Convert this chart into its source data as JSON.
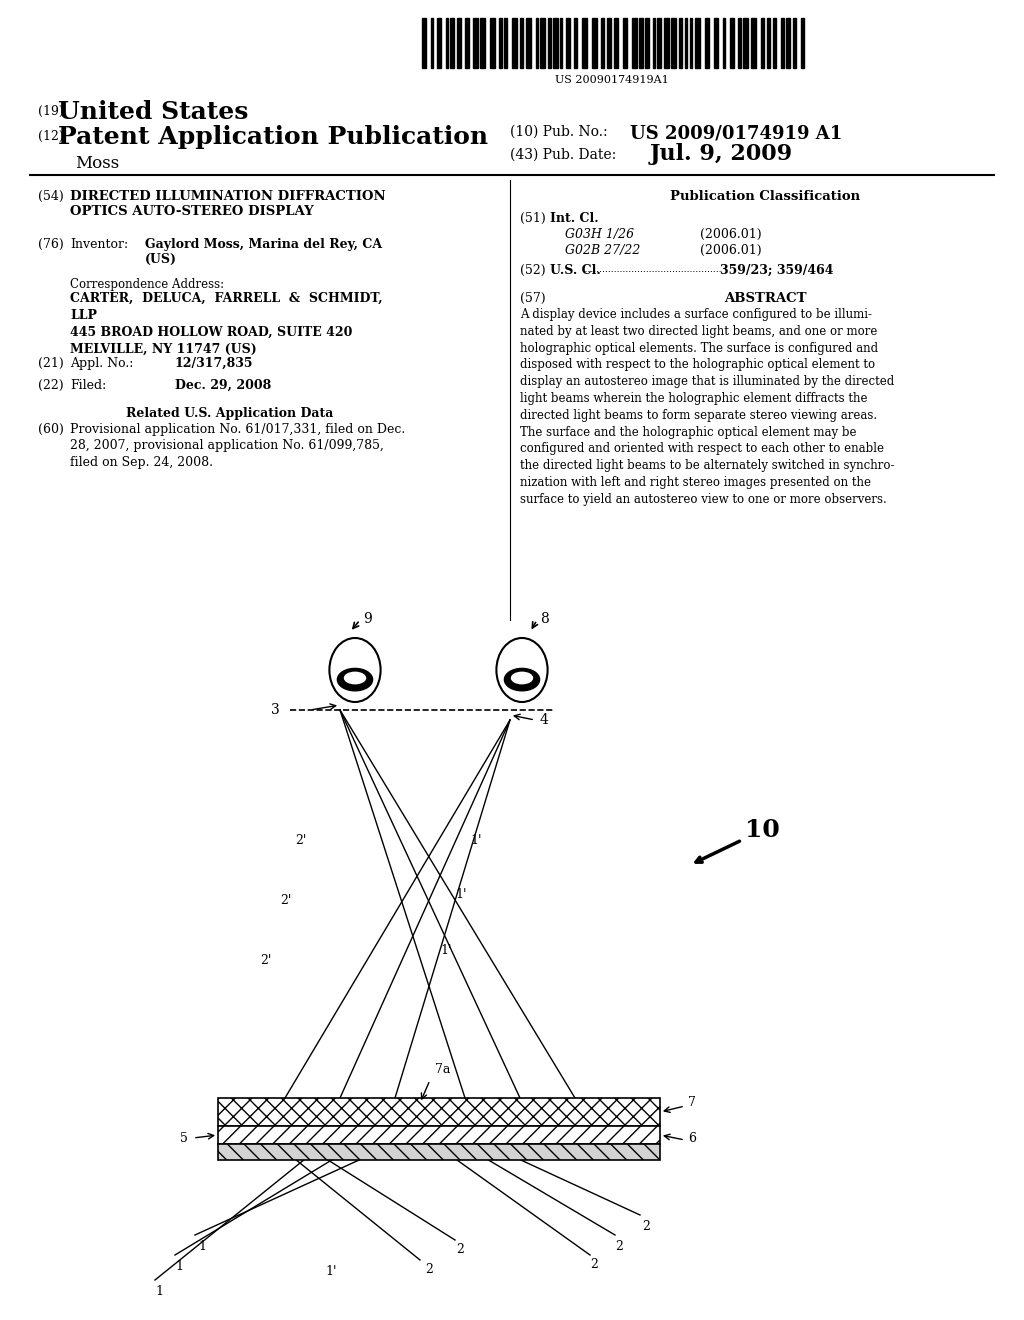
{
  "bg_color": "#ffffff",
  "barcode_text": "US 20090174919A1",
  "header": {
    "country_num": "(19)",
    "country": "United States",
    "type_num": "(12)",
    "type": "Patent Application Publication",
    "pub_num_label": "(10) Pub. No.:",
    "pub_num": "US 2009/0174919 A1",
    "date_num_label": "(43) Pub. Date:",
    "pub_date": "Jul. 9, 2009",
    "inventor_name": "Moss"
  },
  "left_col": {
    "title_num": "(54)",
    "title": "DIRECTED ILLUMINATION DIFFRACTION\nOPTICS AUTO-STEREO DISPLAY",
    "inventor_num": "(76)",
    "inventor_label": "Inventor:",
    "inventor_value": "Gaylord Moss, Marina del Rey, CA\n(US)",
    "corr_label": "Correspondence Address:",
    "corr_name": "CARTER,  DELUCA,  FARRELL  &  SCHMIDT,\nLLP\n445 BROAD HOLLOW ROAD, SUITE 420\nMELVILLE, NY 11747 (US)",
    "appl_num": "(21)",
    "appl_label": "Appl. No.:",
    "appl_value": "12/317,835",
    "filed_num": "(22)",
    "filed_label": "Filed:",
    "filed_value": "Dec. 29, 2008",
    "related_title": "Related U.S. Application Data",
    "related_text": "Provisional application No. 61/017,331, filed on Dec.\n28, 2007, provisional application No. 61/099,785,\nfiled on Sep. 24, 2008."
  },
  "right_col": {
    "pub_class_title": "Publication Classification",
    "int_cl_num": "(51)",
    "int_cl_label": "Int. Cl.",
    "int_cl_1": "G03H 1/26",
    "int_cl_1_date": "(2006.01)",
    "int_cl_2": "G02B 27/22",
    "int_cl_2_date": "(2006.01)",
    "us_cl_num": "(52)",
    "us_cl_label": "U.S. Cl.",
    "us_cl_value": "359/23; 359/464",
    "abstract_num": "(57)",
    "abstract_title": "ABSTRACT",
    "abstract_text": "A display device includes a surface configured to be illumi-\nnated by at least two directed light beams, and one or more\nholographic optical elements. The surface is configured and\ndisposed with respect to the holographic optical element to\ndisplay an autostereo image that is illuminated by the directed\nlight beams wherein the holographic element diffracts the\ndirected light beams to form separate stereo viewing areas.\nThe surface and the holographic optical element may be\nconfigured and oriented with respect to each other to enable\nthe directed light beams to be alternately switched in synchro-\nnization with left and right stereo images presented on the\nsurface to yield an autostereo view to one or more observers."
  }
}
